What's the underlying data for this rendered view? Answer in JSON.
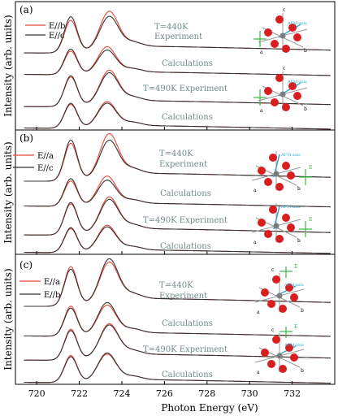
{
  "chart_data": {
    "type": "line",
    "xlabel": "Photon Energy (eV)",
    "ylabel": "Intensity (arb. units)",
    "xlim": [
      719.0,
      734.0
    ],
    "xticks": [
      720,
      722,
      724,
      726,
      728,
      730,
      732
    ],
    "grid": false,
    "colors": {
      "red": "#e8473a",
      "black": "#333333"
    },
    "panels": [
      {
        "label": "(a)",
        "legend": [
          "E//b",
          "E//c"
        ],
        "annotations": [
          "T=440K",
          "Experiment",
          "Calculations",
          "T=490K Experiment",
          "Calculations"
        ],
        "inset_labels": [
          "c",
          "a",
          "b",
          "AFM-axis",
          "c",
          "a",
          "b",
          "AFM-axis"
        ],
        "curves": [
          {
            "group": "T=440K Experiment",
            "polarization": "E//b",
            "color": "red",
            "peaks": [
              [
                721.6,
                0.9
              ],
              [
                723.4,
                1.0
              ]
            ],
            "offset": 0.3
          },
          {
            "group": "T=440K Experiment",
            "polarization": "E//c",
            "color": "black",
            "peaks": [
              [
                721.6,
                1.0
              ],
              [
                723.4,
                0.86
              ]
            ],
            "offset": 0.3
          },
          {
            "group": "T=440K Calculations",
            "polarization": "E//b",
            "color": "red",
            "peaks": [
              [
                721.6,
                0.85
              ],
              [
                723.3,
                0.92
              ]
            ],
            "offset": 0.2
          },
          {
            "group": "T=440K Calculations",
            "polarization": "E//c",
            "color": "black",
            "peaks": [
              [
                721.6,
                0.92
              ],
              [
                723.3,
                0.8
              ]
            ],
            "offset": 0.2
          },
          {
            "group": "T=490K Experiment",
            "polarization": "E//b",
            "color": "red",
            "peaks": [
              [
                721.6,
                0.9
              ],
              [
                723.4,
                0.96
              ]
            ],
            "offset": 0.3
          },
          {
            "group": "T=490K Experiment",
            "polarization": "E//c",
            "color": "black",
            "peaks": [
              [
                721.6,
                0.94
              ],
              [
                723.4,
                0.88
              ]
            ],
            "offset": 0.3
          },
          {
            "group": "T=490K Calculations",
            "polarization": "E//b",
            "color": "red",
            "peaks": [
              [
                721.6,
                0.86
              ],
              [
                723.3,
                0.88
              ]
            ],
            "offset": 0.2
          },
          {
            "group": "T=490K Calculations",
            "polarization": "E//c",
            "color": "black",
            "peaks": [
              [
                721.6,
                0.9
              ],
              [
                723.3,
                0.82
              ]
            ],
            "offset": 0.2
          }
        ]
      },
      {
        "label": "(b)",
        "legend": [
          "E//a",
          "E//c"
        ],
        "annotations": [
          "T=440K",
          "Experiment",
          "Calculations",
          "T=490K Experiment",
          "Calculations"
        ],
        "inset_labels": [
          "a",
          "b",
          "AFM-axis",
          "E",
          "a",
          "b",
          "AFM-axis",
          "E"
        ],
        "curves": [
          {
            "group": "T=440K Experiment",
            "polarization": "E//a",
            "color": "red",
            "peaks": [
              [
                721.6,
                0.92
              ],
              [
                723.4,
                1.0
              ]
            ],
            "offset": 0.3
          },
          {
            "group": "T=440K Experiment",
            "polarization": "E//c",
            "color": "black",
            "peaks": [
              [
                721.6,
                1.0
              ],
              [
                723.4,
                0.84
              ]
            ],
            "offset": 0.3
          },
          {
            "group": "T=440K Calculations",
            "polarization": "E//a",
            "color": "red",
            "peaks": [
              [
                721.6,
                0.86
              ],
              [
                723.3,
                0.94
              ]
            ],
            "offset": 0.2
          },
          {
            "group": "T=440K Calculations",
            "polarization": "E//c",
            "color": "black",
            "peaks": [
              [
                721.6,
                0.94
              ],
              [
                723.3,
                0.8
              ]
            ],
            "offset": 0.2
          },
          {
            "group": "T=490K Experiment",
            "polarization": "E//a",
            "color": "red",
            "peaks": [
              [
                721.6,
                0.9
              ],
              [
                723.4,
                0.95
              ]
            ],
            "offset": 0.3
          },
          {
            "group": "T=490K Experiment",
            "polarization": "E//c",
            "color": "black",
            "peaks": [
              [
                721.6,
                0.94
              ],
              [
                723.4,
                0.88
              ]
            ],
            "offset": 0.3
          },
          {
            "group": "T=490K Calculations",
            "polarization": "E//a",
            "color": "red",
            "peaks": [
              [
                721.6,
                0.86
              ],
              [
                723.3,
                0.9
              ]
            ],
            "offset": 0.2
          },
          {
            "group": "T=490K Calculations",
            "polarization": "E//c",
            "color": "black",
            "peaks": [
              [
                721.6,
                0.9
              ],
              [
                723.3,
                0.84
              ]
            ],
            "offset": 0.2
          }
        ]
      },
      {
        "label": "(c)",
        "legend": [
          "E//a",
          "E//b"
        ],
        "annotations": [
          "T=440K",
          "Experiment",
          "Calculations",
          "T=490K Experiment",
          "Calculations"
        ],
        "inset_labels": [
          "c",
          "a",
          "b",
          "AFM-axis",
          "E",
          "c",
          "a",
          "b",
          "AFM-axis",
          "E"
        ],
        "curves": [
          {
            "group": "T=440K Experiment",
            "polarization": "E//a",
            "color": "red",
            "peaks": [
              [
                721.6,
                0.96
              ],
              [
                723.4,
                0.92
              ]
            ],
            "offset": 0.3
          },
          {
            "group": "T=440K Experiment",
            "polarization": "E//b",
            "color": "black",
            "peaks": [
              [
                721.6,
                0.9
              ],
              [
                723.4,
                1.0
              ]
            ],
            "offset": 0.3
          },
          {
            "group": "T=440K Calculations",
            "polarization": "E//a",
            "color": "red",
            "peaks": [
              [
                721.6,
                0.92
              ],
              [
                723.3,
                0.86
              ]
            ],
            "offset": 0.2
          },
          {
            "group": "T=440K Calculations",
            "polarization": "E//b",
            "color": "black",
            "peaks": [
              [
                721.6,
                0.86
              ],
              [
                723.3,
                0.94
              ]
            ],
            "offset": 0.2
          },
          {
            "group": "T=490K Experiment",
            "polarization": "E//a",
            "color": "red",
            "peaks": [
              [
                721.6,
                0.94
              ],
              [
                723.4,
                0.96
              ]
            ],
            "offset": 0.3
          },
          {
            "group": "T=490K Experiment",
            "polarization": "E//b",
            "color": "black",
            "peaks": [
              [
                721.6,
                0.9
              ],
              [
                723.4,
                0.92
              ]
            ],
            "offset": 0.3
          },
          {
            "group": "T=490K Calculations",
            "polarization": "E//a",
            "color": "red",
            "peaks": [
              [
                721.6,
                0.92
              ],
              [
                723.3,
                0.88
              ]
            ],
            "offset": 0.2
          },
          {
            "group": "T=490K Calculations",
            "polarization": "E//b",
            "color": "black",
            "peaks": [
              [
                721.6,
                0.88
              ],
              [
                723.3,
                0.92
              ]
            ],
            "offset": 0.2
          }
        ]
      }
    ]
  }
}
